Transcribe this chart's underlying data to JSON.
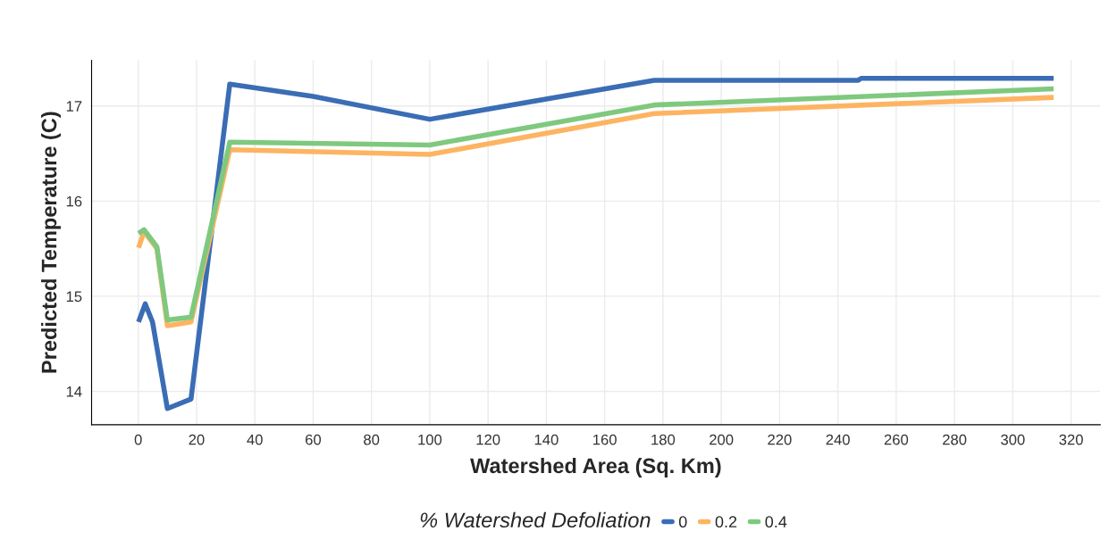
{
  "chart_data": {
    "type": "line",
    "xlabel": "Watershed Area (Sq. Km)",
    "ylabel": "Predicted Temperature (C)",
    "legend_title": "% Watershed Defoliation",
    "series": [
      {
        "name": "0",
        "color": "#3a6db5",
        "x": [
          0.1,
          2.4,
          4.9,
          10,
          18.1,
          31.4,
          60,
          100,
          177,
          247,
          248,
          314
        ],
        "values": [
          14.73,
          14.92,
          14.73,
          13.82,
          13.92,
          17.23,
          17.1,
          16.86,
          17.27,
          17.27,
          17.29,
          17.29
        ]
      },
      {
        "name": "0.2",
        "color": "#fdb462",
        "x": [
          0.1,
          2,
          6.4,
          10,
          18.1,
          31.4,
          100,
          177,
          314
        ],
        "values": [
          15.51,
          15.68,
          15.5,
          14.69,
          14.73,
          16.54,
          16.49,
          16.92,
          17.09
        ]
      },
      {
        "name": "0.4",
        "color": "#7fc97f",
        "x": [
          0.1,
          2,
          6.4,
          10,
          18.1,
          31.4,
          100,
          177,
          314
        ],
        "values": [
          15.66,
          15.7,
          15.52,
          14.75,
          14.78,
          16.62,
          16.59,
          17.01,
          17.18
        ]
      }
    ],
    "xlim": [
      -16,
      330
    ],
    "ylim": [
      13.65,
      17.48
    ],
    "xticks": [
      0,
      20,
      40,
      60,
      80,
      100,
      120,
      140,
      160,
      180,
      200,
      220,
      240,
      260,
      280,
      300,
      320
    ],
    "yticks": [
      14,
      15,
      16,
      17
    ],
    "grid": true,
    "legend": "bottom",
    "line_style": "solid"
  }
}
